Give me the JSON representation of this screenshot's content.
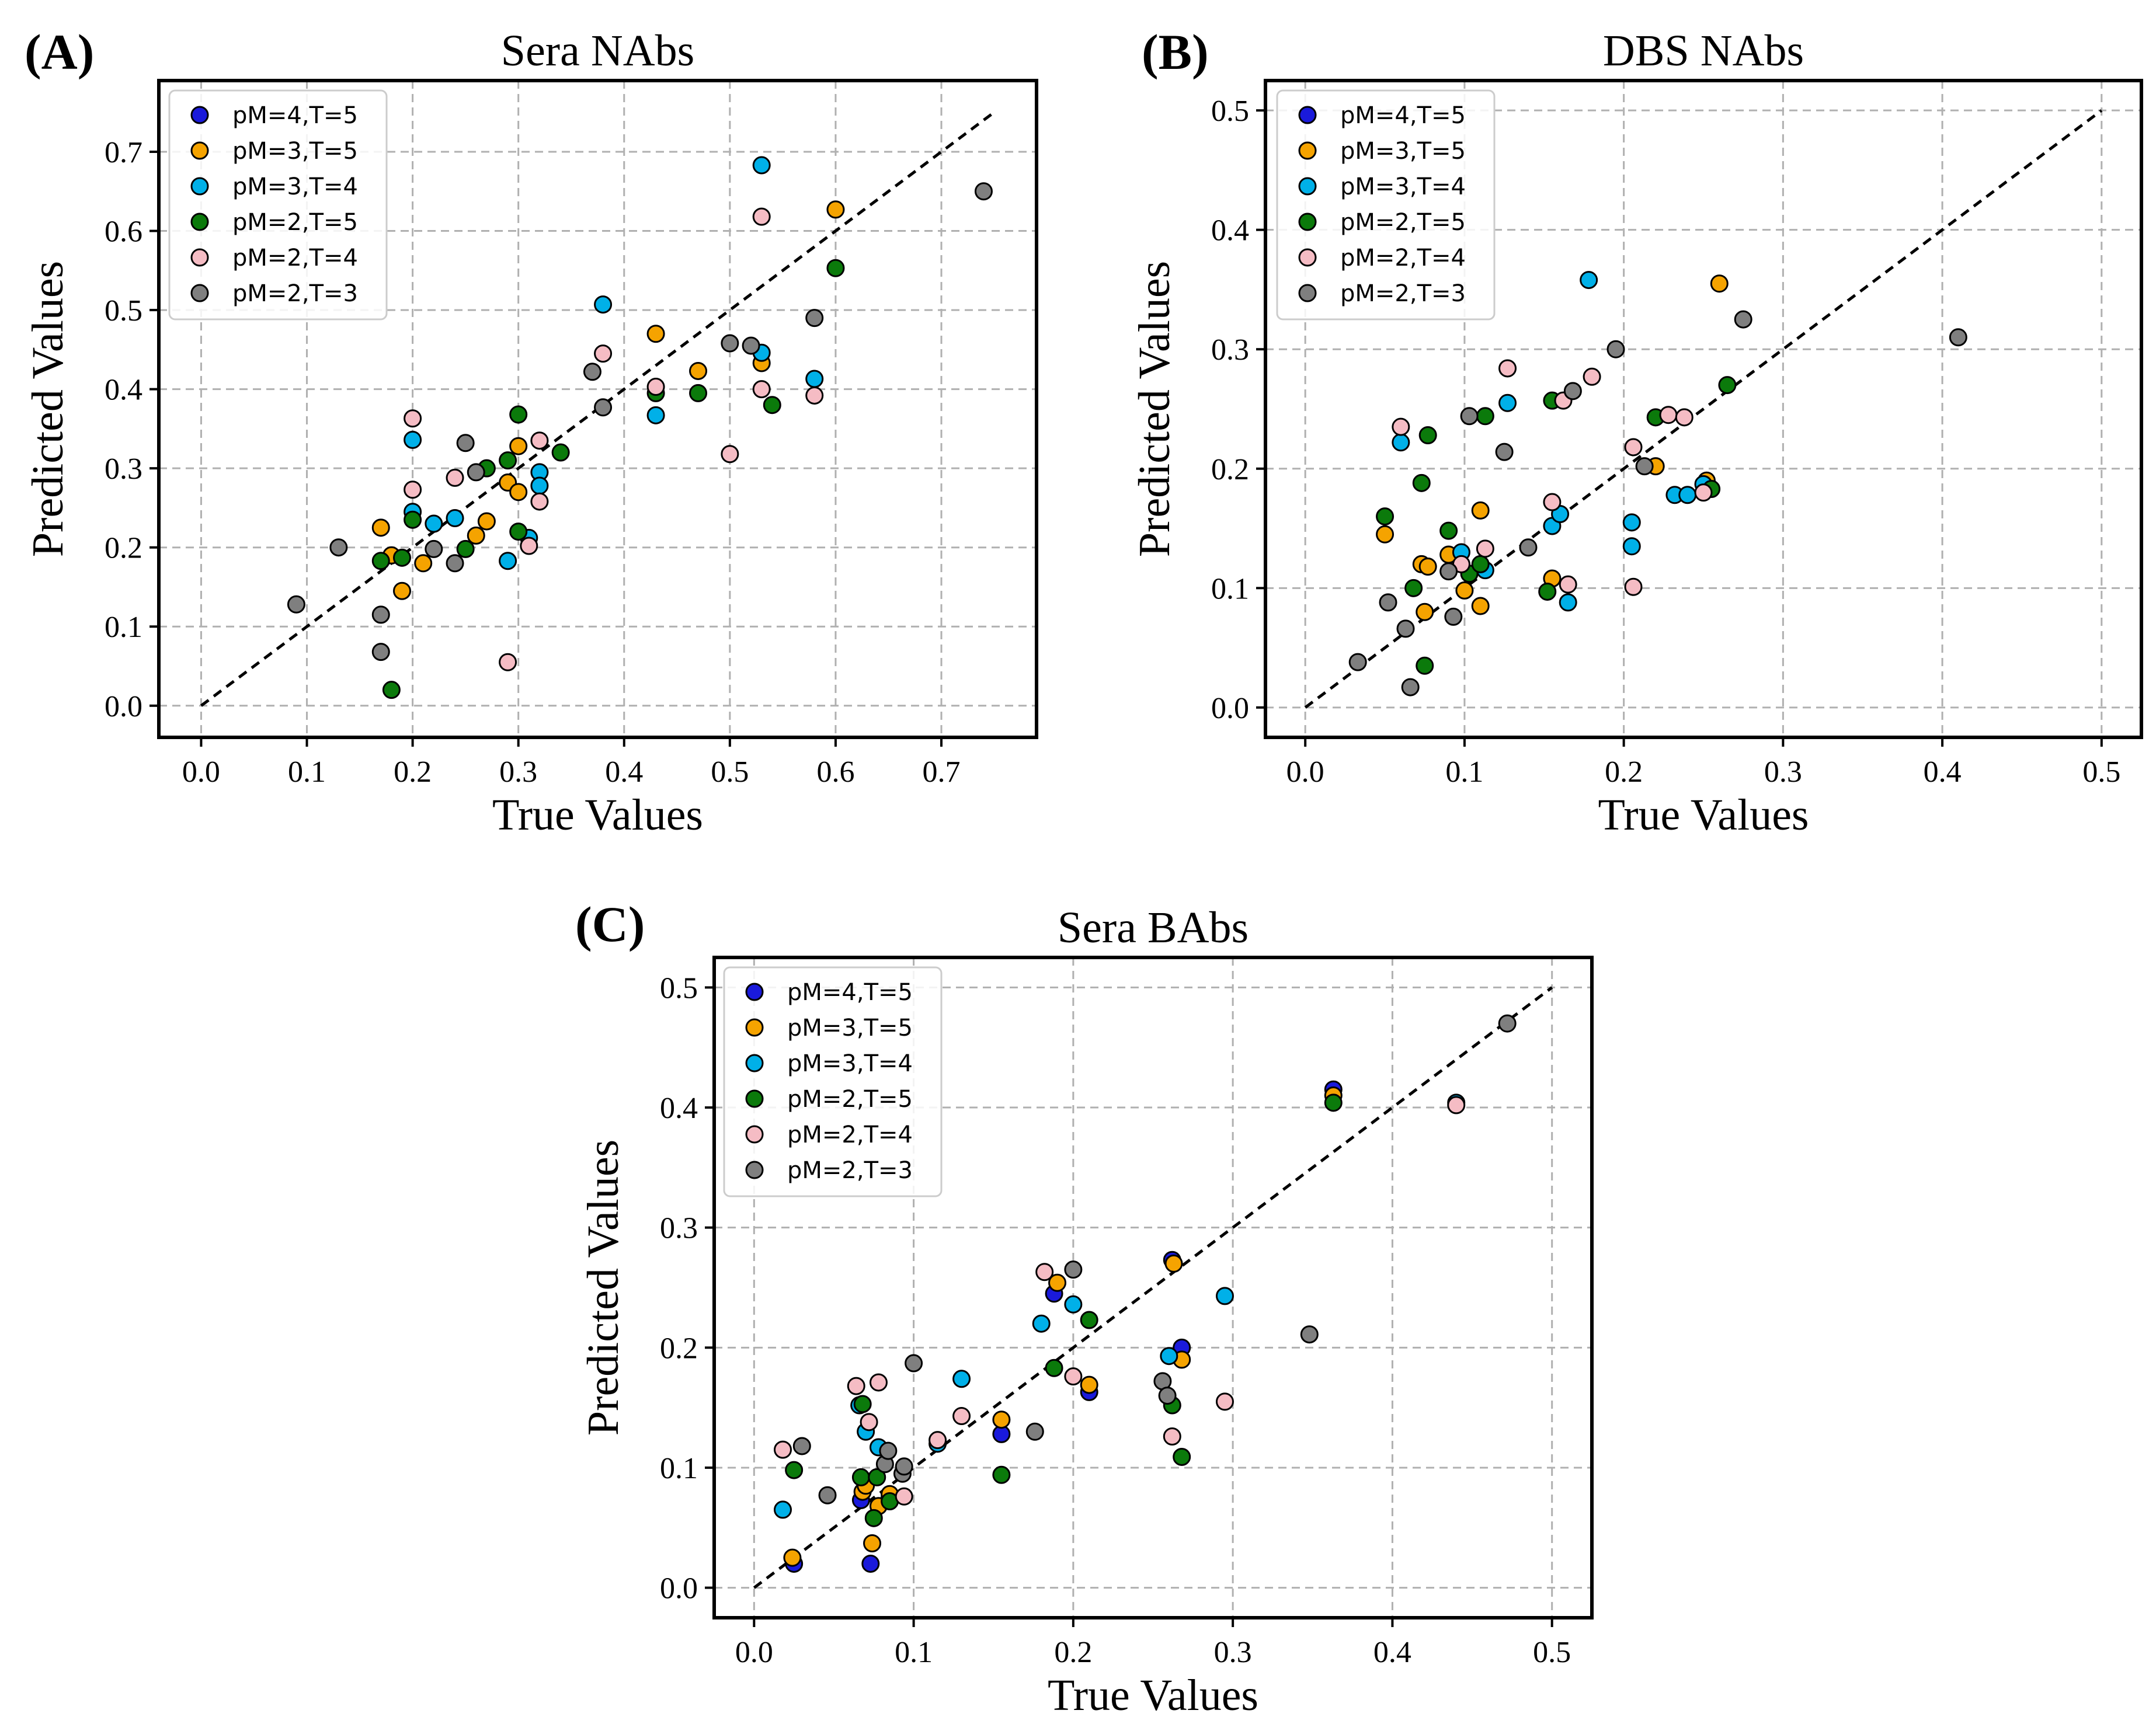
{
  "colors": {
    "pM=4,T=5": "#1a1adb",
    "pM=3,T=5": "#f5a300",
    "pM=3,T=4": "#00b0e8",
    "pM=2,T=5": "#0b7a0b",
    "pM=2,T=4": "#f5bcc4",
    "pM=2,T=3": "#7f7f7f"
  },
  "chart_data": [
    {
      "panel": "(A)",
      "type": "scatter",
      "title": "Sera NAbs",
      "xlabel": "True Values",
      "ylabel": "Predicted Values",
      "xlim": [
        -0.04,
        0.79
      ],
      "ylim": [
        -0.04,
        0.79
      ],
      "xticks": [
        0.0,
        0.1,
        0.2,
        0.3,
        0.4,
        0.5,
        0.6,
        0.7
      ],
      "yticks": [
        0.0,
        0.1,
        0.2,
        0.3,
        0.4,
        0.5,
        0.6,
        0.7
      ],
      "xtick_labels": [
        "0.0",
        "0.1",
        "0.2",
        "0.3",
        "0.4",
        "0.5",
        "0.6",
        "0.7"
      ],
      "ytick_labels": [
        "0.0",
        "0.1",
        "0.2",
        "0.3",
        "0.4",
        "0.5",
        "0.6",
        "0.7"
      ],
      "diagonal": [
        0,
        0.75
      ],
      "grid": true,
      "legend_position": "top-left",
      "legend": [
        "pM=4,T=5",
        "pM=3,T=5",
        "pM=3,T=4",
        "pM=2,T=5",
        "pM=2,T=4",
        "pM=2,T=3"
      ],
      "series": [
        {
          "name": "pM=4,T=5",
          "x": [],
          "y": []
        },
        {
          "name": "pM=3,T=5",
          "x": [
            0.17,
            0.18,
            0.19,
            0.21,
            0.26,
            0.27,
            0.29,
            0.3,
            0.3,
            0.43,
            0.47,
            0.53,
            0.6
          ],
          "y": [
            0.225,
            0.19,
            0.145,
            0.18,
            0.215,
            0.233,
            0.282,
            0.328,
            0.27,
            0.47,
            0.423,
            0.433,
            0.627
          ]
        },
        {
          "name": "pM=3,T=4",
          "x": [
            0.2,
            0.2,
            0.22,
            0.24,
            0.29,
            0.31,
            0.32,
            0.32,
            0.38,
            0.43,
            0.53,
            0.53,
            0.58
          ],
          "y": [
            0.336,
            0.245,
            0.23,
            0.237,
            0.183,
            0.212,
            0.295,
            0.278,
            0.507,
            0.367,
            0.683,
            0.446,
            0.413
          ]
        },
        {
          "name": "pM=2,T=5",
          "x": [
            0.17,
            0.18,
            0.19,
            0.2,
            0.25,
            0.27,
            0.29,
            0.3,
            0.3,
            0.34,
            0.43,
            0.47,
            0.54,
            0.6
          ],
          "y": [
            0.183,
            0.02,
            0.187,
            0.235,
            0.198,
            0.3,
            0.31,
            0.368,
            0.22,
            0.32,
            0.395,
            0.395,
            0.38,
            0.553
          ]
        },
        {
          "name": "pM=2,T=4",
          "x": [
            0.2,
            0.2,
            0.24,
            0.29,
            0.31,
            0.32,
            0.32,
            0.38,
            0.43,
            0.5,
            0.53,
            0.53,
            0.58
          ],
          "y": [
            0.363,
            0.273,
            0.288,
            0.055,
            0.202,
            0.258,
            0.335,
            0.445,
            0.403,
            0.318,
            0.618,
            0.4,
            0.392
          ]
        },
        {
          "name": "pM=2,T=3",
          "x": [
            0.09,
            0.13,
            0.17,
            0.17,
            0.22,
            0.24,
            0.25,
            0.26,
            0.37,
            0.38,
            0.5,
            0.52,
            0.58,
            0.74
          ],
          "y": [
            0.128,
            0.2,
            0.068,
            0.115,
            0.198,
            0.18,
            0.332,
            0.295,
            0.422,
            0.377,
            0.458,
            0.455,
            0.49,
            0.65
          ]
        }
      ]
    },
    {
      "panel": "(B)",
      "type": "scatter",
      "title": "DBS NAbs",
      "xlabel": "True Values",
      "ylabel": "Predicted Values",
      "xlim": [
        -0.025,
        0.525
      ],
      "ylim": [
        -0.025,
        0.525
      ],
      "xticks": [
        0.0,
        0.1,
        0.2,
        0.3,
        0.4,
        0.5
      ],
      "yticks": [
        0.0,
        0.1,
        0.2,
        0.3,
        0.4,
        0.5
      ],
      "xtick_labels": [
        "0.0",
        "0.1",
        "0.2",
        "0.3",
        "0.4",
        "0.5"
      ],
      "ytick_labels": [
        "0.0",
        "0.1",
        "0.2",
        "0.3",
        "0.4",
        "0.5"
      ],
      "diagonal": [
        0,
        0.5
      ],
      "grid": true,
      "legend_position": "top-left",
      "legend": [
        "pM=4,T=5",
        "pM=3,T=5",
        "pM=3,T=4",
        "pM=2,T=5",
        "pM=2,T=4",
        "pM=2,T=3"
      ],
      "series": [
        {
          "name": "pM=4,T=5",
          "x": [],
          "y": []
        },
        {
          "name": "pM=3,T=5",
          "x": [
            0.05,
            0.073,
            0.077,
            0.075,
            0.09,
            0.1,
            0.11,
            0.11,
            0.155,
            0.22,
            0.252,
            0.26
          ],
          "y": [
            0.145,
            0.12,
            0.118,
            0.08,
            0.128,
            0.098,
            0.085,
            0.165,
            0.108,
            0.202,
            0.19,
            0.355
          ]
        },
        {
          "name": "pM=3,T=4",
          "x": [
            0.06,
            0.098,
            0.113,
            0.127,
            0.155,
            0.16,
            0.165,
            0.178,
            0.205,
            0.205,
            0.232,
            0.24,
            0.25
          ],
          "y": [
            0.222,
            0.13,
            0.115,
            0.255,
            0.152,
            0.162,
            0.088,
            0.358,
            0.155,
            0.135,
            0.178,
            0.178,
            0.187
          ]
        },
        {
          "name": "pM=2,T=5",
          "x": [
            0.05,
            0.068,
            0.073,
            0.075,
            0.077,
            0.09,
            0.103,
            0.11,
            0.113,
            0.152,
            0.155,
            0.22,
            0.255,
            0.265
          ],
          "y": [
            0.16,
            0.1,
            0.188,
            0.035,
            0.228,
            0.148,
            0.112,
            0.12,
            0.244,
            0.097,
            0.257,
            0.243,
            0.183,
            0.27
          ]
        },
        {
          "name": "pM=2,T=4",
          "x": [
            0.06,
            0.098,
            0.113,
            0.127,
            0.155,
            0.162,
            0.165,
            0.18,
            0.206,
            0.206,
            0.228,
            0.238,
            0.25
          ],
          "y": [
            0.235,
            0.12,
            0.133,
            0.284,
            0.172,
            0.257,
            0.103,
            0.277,
            0.218,
            0.101,
            0.245,
            0.243,
            0.18
          ]
        },
        {
          "name": "pM=2,T=3",
          "x": [
            0.033,
            0.052,
            0.063,
            0.066,
            0.09,
            0.093,
            0.103,
            0.125,
            0.14,
            0.168,
            0.195,
            0.213,
            0.275,
            0.41
          ],
          "y": [
            0.038,
            0.088,
            0.066,
            0.017,
            0.114,
            0.076,
            0.244,
            0.214,
            0.134,
            0.265,
            0.3,
            0.202,
            0.325,
            0.31
          ]
        }
      ]
    },
    {
      "panel": "(C)",
      "type": "scatter",
      "title": "Sera BAbs",
      "xlabel": "True Values",
      "ylabel": "Predicted Values",
      "xlim": [
        -0.025,
        0.525
      ],
      "ylim": [
        -0.025,
        0.525
      ],
      "xticks": [
        0.0,
        0.1,
        0.2,
        0.3,
        0.4,
        0.5
      ],
      "yticks": [
        0.0,
        0.1,
        0.2,
        0.3,
        0.4,
        0.5
      ],
      "xtick_labels": [
        "0.0",
        "0.1",
        "0.2",
        "0.3",
        "0.4",
        "0.5"
      ],
      "ytick_labels": [
        "0.0",
        "0.1",
        "0.2",
        "0.3",
        "0.4",
        "0.5"
      ],
      "diagonal": [
        0,
        0.5
      ],
      "grid": true,
      "legend_position": "top-left",
      "legend": [
        "pM=4,T=5",
        "pM=3,T=5",
        "pM=3,T=4",
        "pM=2,T=5",
        "pM=2,T=4",
        "pM=2,T=3"
      ],
      "series": [
        {
          "name": "pM=4,T=5",
          "x": [
            0.025,
            0.067,
            0.073,
            0.085,
            0.155,
            0.188,
            0.21,
            0.262,
            0.268,
            0.363
          ],
          "y": [
            0.02,
            0.073,
            0.02,
            0.075,
            0.128,
            0.245,
            0.163,
            0.273,
            0.2,
            0.415
          ]
        },
        {
          "name": "pM=3,T=5",
          "x": [
            0.024,
            0.068,
            0.07,
            0.074,
            0.078,
            0.085,
            0.155,
            0.19,
            0.21,
            0.263,
            0.268,
            0.363
          ],
          "y": [
            0.025,
            0.08,
            0.085,
            0.037,
            0.068,
            0.078,
            0.14,
            0.254,
            0.169,
            0.27,
            0.19,
            0.41
          ]
        },
        {
          "name": "pM=3,T=4",
          "x": [
            0.018,
            0.066,
            0.07,
            0.078,
            0.115,
            0.13,
            0.18,
            0.2,
            0.26,
            0.295,
            0.44
          ],
          "y": [
            0.065,
            0.152,
            0.13,
            0.117,
            0.12,
            0.174,
            0.22,
            0.236,
            0.193,
            0.243,
            0.404
          ]
        },
        {
          "name": "pM=2,T=5",
          "x": [
            0.025,
            0.067,
            0.068,
            0.075,
            0.077,
            0.085,
            0.155,
            0.188,
            0.21,
            0.262,
            0.268,
            0.363
          ],
          "y": [
            0.098,
            0.092,
            0.153,
            0.058,
            0.092,
            0.072,
            0.094,
            0.183,
            0.223,
            0.152,
            0.109,
            0.404
          ]
        },
        {
          "name": "pM=2,T=4",
          "x": [
            0.018,
            0.064,
            0.072,
            0.078,
            0.094,
            0.115,
            0.13,
            0.182,
            0.2,
            0.262,
            0.295,
            0.44
          ],
          "y": [
            0.115,
            0.168,
            0.138,
            0.171,
            0.076,
            0.123,
            0.143,
            0.263,
            0.176,
            0.126,
            0.155,
            0.402
          ]
        },
        {
          "name": "pM=2,T=3",
          "x": [
            0.03,
            0.046,
            0.082,
            0.084,
            0.093,
            0.094,
            0.1,
            0.176,
            0.2,
            0.256,
            0.259,
            0.348,
            0.472
          ],
          "y": [
            0.118,
            0.077,
            0.103,
            0.114,
            0.095,
            0.101,
            0.187,
            0.13,
            0.265,
            0.172,
            0.16,
            0.211,
            0.47
          ]
        }
      ]
    }
  ]
}
